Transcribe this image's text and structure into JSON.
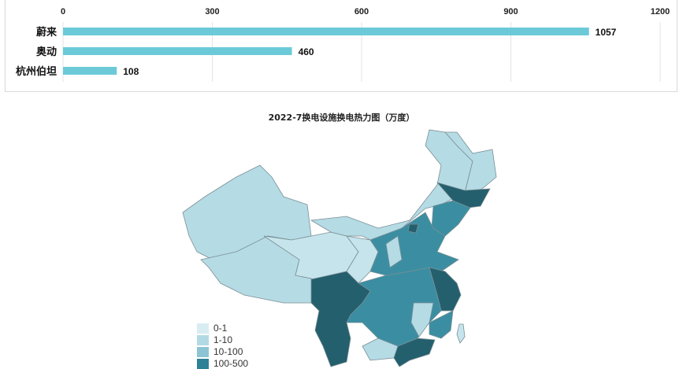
{
  "chart_data": [
    {
      "type": "bar",
      "orientation": "horizontal",
      "title": "",
      "categories": [
        "蔚来",
        "奥动",
        "杭州伯坦"
      ],
      "values": [
        1057,
        460,
        108
      ],
      "xlim": [
        0,
        1200
      ],
      "xticks": [
        0,
        300,
        600,
        900,
        1200
      ],
      "grid": true,
      "bar_color": "#6ccad8"
    },
    {
      "type": "heatmap",
      "subtype": "choropleth-map",
      "title": "2022-7换电设施换电热力图（万度）",
      "legend": [
        {
          "label": "0-1",
          "color": "#d8edf2"
        },
        {
          "label": "1-10",
          "color": "#b2dae4"
        },
        {
          "label": "10-100",
          "color": "#8cc4d3"
        },
        {
          "label": "100-500",
          "color": "#2f8196"
        }
      ],
      "legend_placement": "bottom-left",
      "region_colors": {
        "light": "#b5dbe5",
        "lighter": "#c6e4ec",
        "medium": "#3b8ea2",
        "dark": "#245f6d"
      }
    }
  ]
}
